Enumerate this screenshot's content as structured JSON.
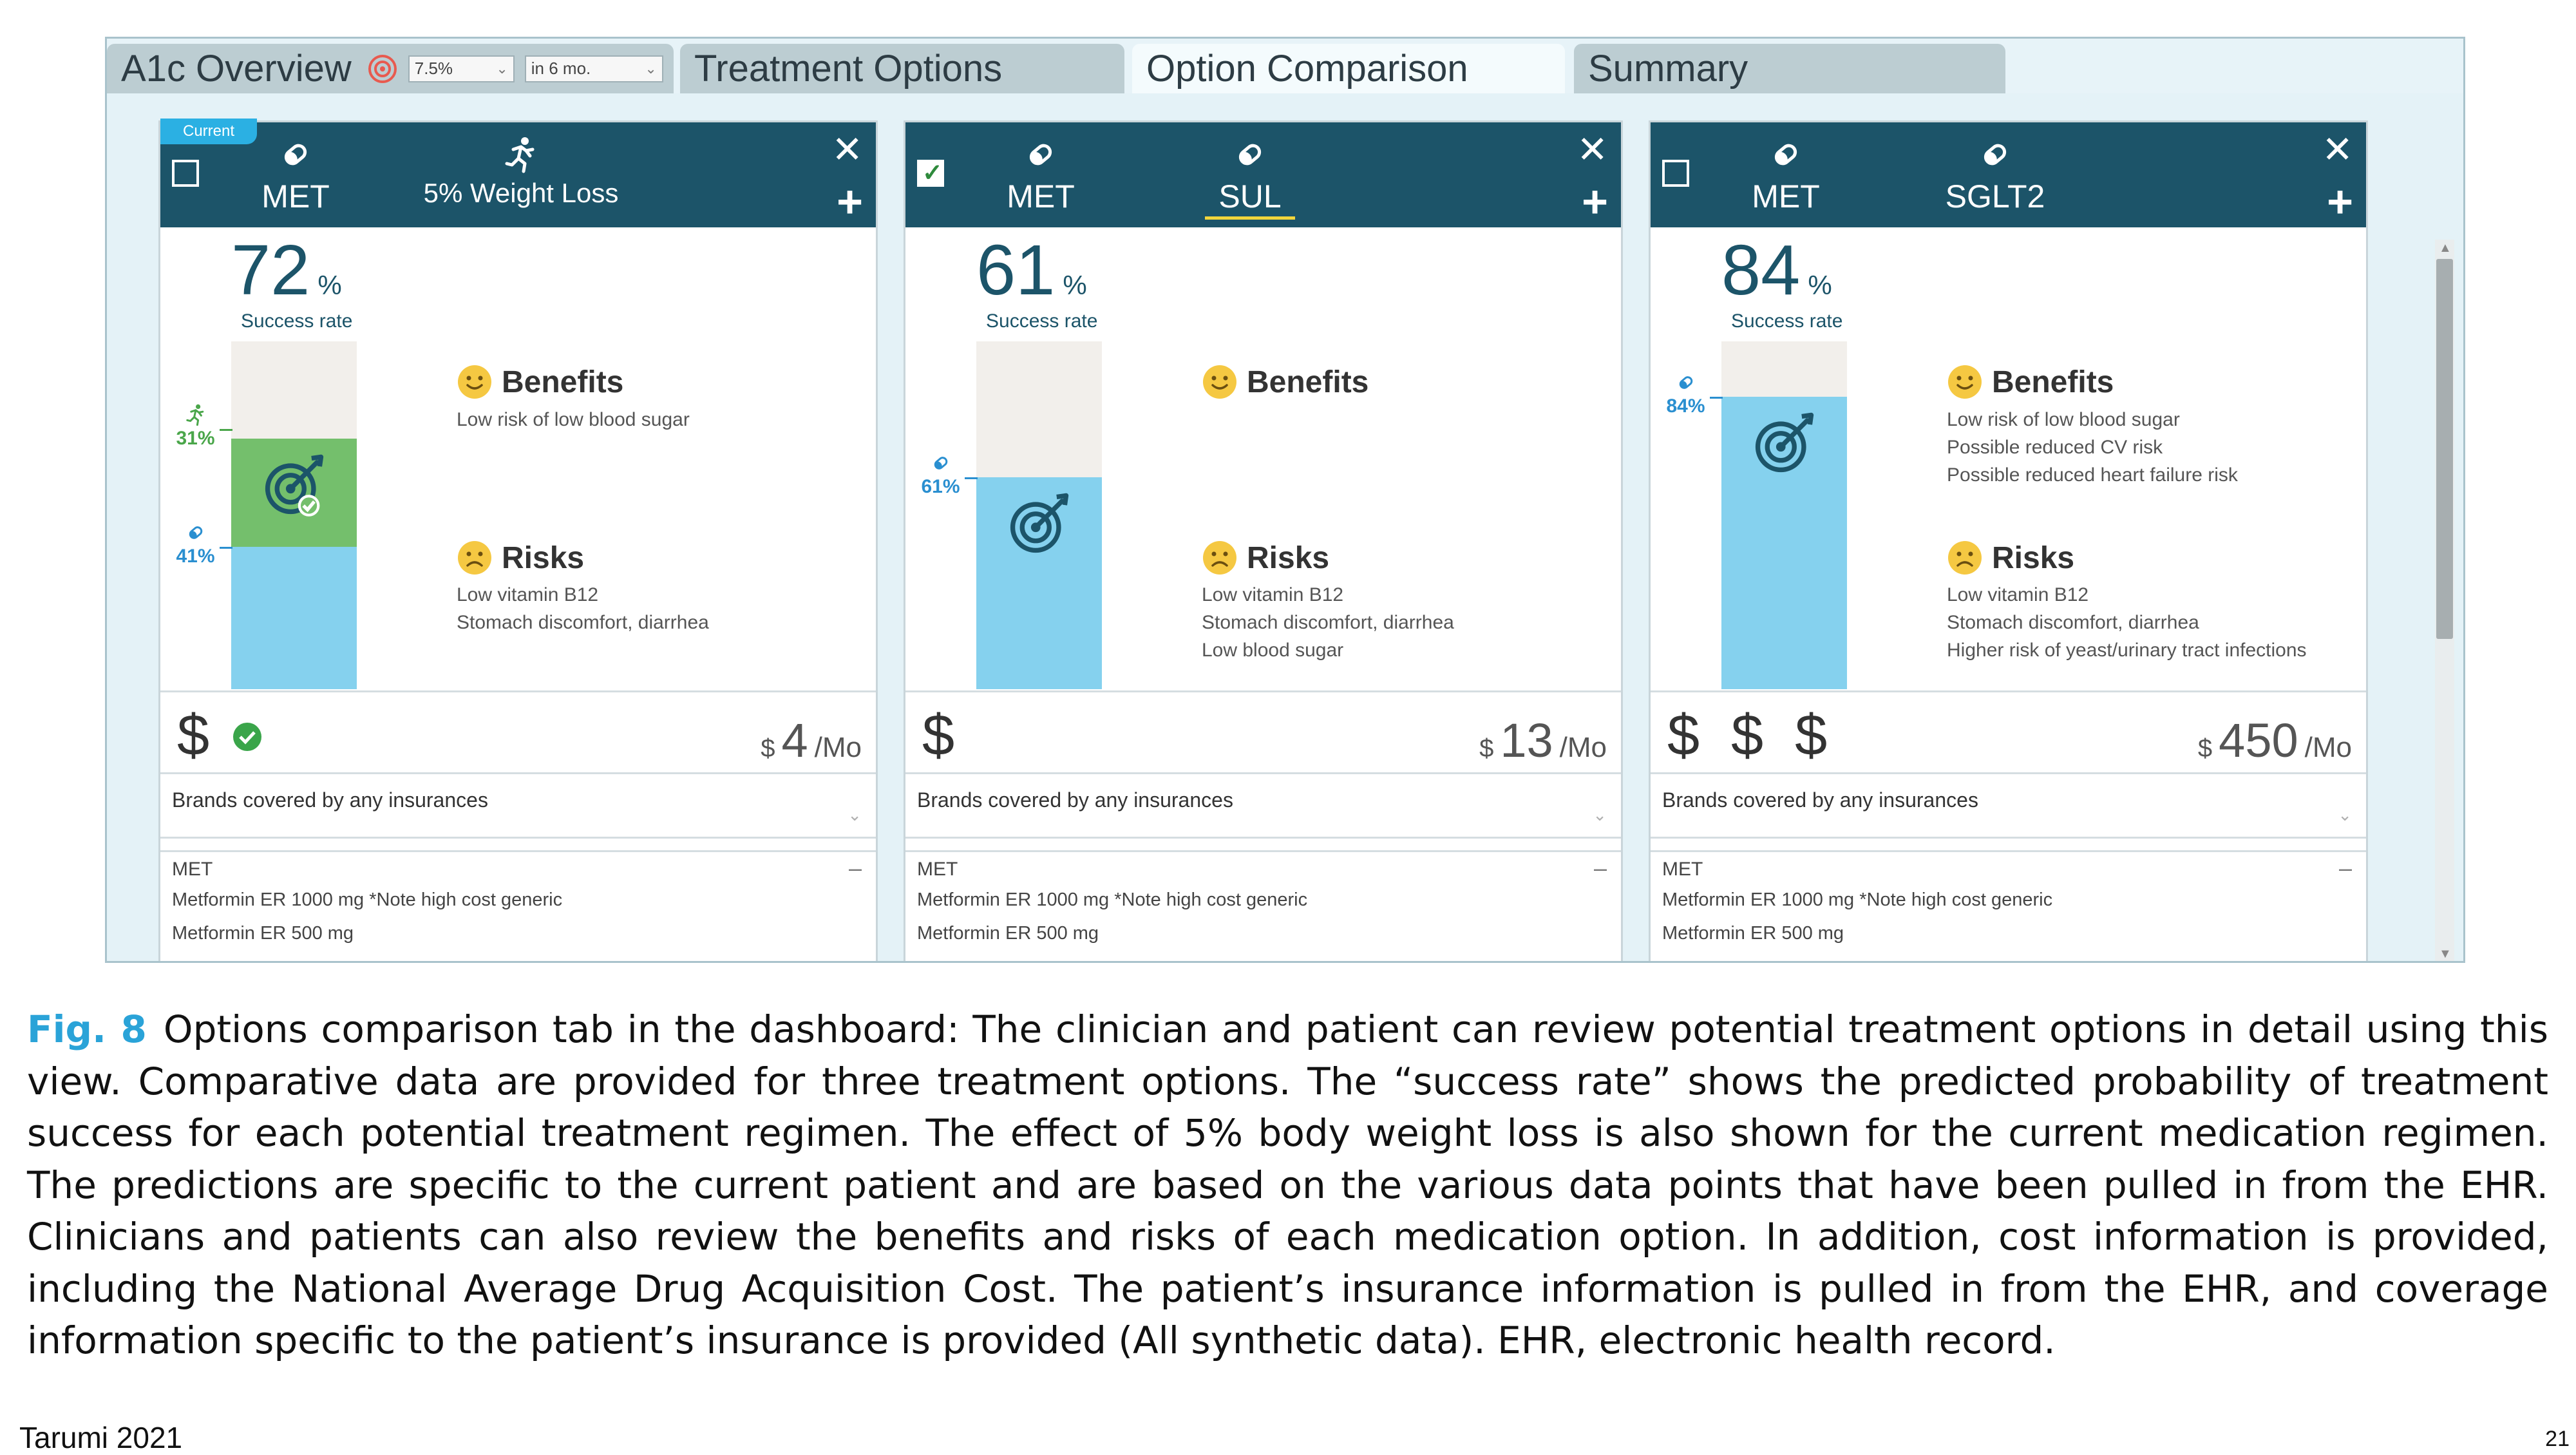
{
  "tabs": {
    "a1c_overview": {
      "label": "A1c Overview",
      "target_value": "7.5%",
      "time_value": "in 6 mo."
    },
    "treatment_options": "Treatment Options",
    "option_comparison": "Option Comparison",
    "summary": "Summary",
    "active": "Option Comparison"
  },
  "cards": [
    {
      "current_tag": "Current",
      "checked": false,
      "options": [
        {
          "icon": "pill-icon",
          "label": "MET"
        },
        {
          "icon": "runner-icon",
          "label": "5% Weight Loss"
        }
      ],
      "success_pct": "72",
      "pct_sign": "%",
      "success_label": "Success rate",
      "bar": {
        "blue_pct": 41,
        "green_pct": 31
      },
      "annotations": [
        {
          "icon": "runner-icon",
          "value": "31%"
        },
        {
          "icon": "pill-icon",
          "value": "41%"
        }
      ],
      "benefits_title": "Benefits",
      "benefits": [
        "Low risk of low blood sugar"
      ],
      "risks_title": "Risks",
      "risks": [
        "Low vitamin B12",
        "Stomach discomfort, diarrhea"
      ],
      "cost_symbol": "$",
      "covered": true,
      "price_currency": "$",
      "price_value": "4",
      "price_unit": "/Mo",
      "brands_label": "Brands covered by any insurances",
      "med_header": "MET",
      "med_dash": "–",
      "meds": [
        "Metformin ER 1000 mg *Note high cost generic",
        "Metformin ER 500 mg"
      ]
    },
    {
      "current_tag": "",
      "checked": true,
      "options": [
        {
          "icon": "pill-icon",
          "label": "MET"
        },
        {
          "icon": "pill-icon",
          "label": "SUL"
        }
      ],
      "success_pct": "61",
      "pct_sign": "%",
      "success_label": "Success rate",
      "bar": {
        "blue_pct": 61,
        "green_pct": 0
      },
      "annotations": [
        {
          "icon": "pill-icon",
          "value": "61%"
        }
      ],
      "benefits_title": "Benefits",
      "benefits": [],
      "risks_title": "Risks",
      "risks": [
        "Low vitamin B12",
        "Stomach discomfort, diarrhea",
        "Low blood sugar"
      ],
      "cost_symbol": "$",
      "covered": false,
      "price_currency": "$",
      "price_value": "13",
      "price_unit": "/Mo",
      "brands_label": "Brands covered by any insurances",
      "med_header": "MET",
      "med_dash": "–",
      "meds": [
        "Metformin ER 1000 mg *Note high cost generic",
        "Metformin ER 500 mg"
      ]
    },
    {
      "current_tag": "",
      "checked": false,
      "options": [
        {
          "icon": "pill-icon",
          "label": "MET"
        },
        {
          "icon": "pill-icon",
          "label": "SGLT2"
        }
      ],
      "success_pct": "84",
      "pct_sign": "%",
      "success_label": "Success rate",
      "bar": {
        "blue_pct": 84,
        "green_pct": 0
      },
      "annotations": [
        {
          "icon": "pill-icon",
          "value": "84%"
        }
      ],
      "benefits_title": "Benefits",
      "benefits": [
        "Low risk of low blood sugar",
        "Possible reduced CV risk",
        "Possible reduced heart failure risk"
      ],
      "risks_title": "Risks",
      "risks": [
        "Low vitamin B12",
        "Stomach discomfort, diarrhea",
        "Higher risk of yeast/urinary tract infections"
      ],
      "cost_symbol": "$ $ $",
      "covered": false,
      "price_currency": "$",
      "price_value": "450",
      "price_unit": "/Mo",
      "brands_label": "Brands covered by any insurances",
      "med_header": "MET",
      "med_dash": "–",
      "meds": [
        "Metformin ER 1000 mg *Note high cost generic",
        "Metformin ER 500 mg"
      ]
    }
  ],
  "colors": {
    "header": "#1c5469",
    "bar_blue": "#85d1ee",
    "bar_green": "#74bf6c",
    "bar_bg": "#f2efeb",
    "current_tag": "#2bb0e3",
    "fig_label": "#2aa3d8"
  },
  "caption": {
    "fig_label": "Fig. 8",
    "text": "Options comparison tab in the dashboard: The clinician and patient can review potential treatment options in detail using this view. Comparative data are provided for three treatment options. The “success rate” shows the predicted probability of treatment success for each potential treatment regimen. The effect of 5% body weight loss is also shown for the current medication regimen. The predictions are specific to the current patient and are based on the various data points that have been pulled in from the EHR. Clinicians and patients can also review the benefits and risks of each medication option. In addition, cost information is provided, including the National Average Drug Acquisition Cost. The patient’s insurance information is pulled in from the EHR, and coverage information specific to the patient’s insurance is provided (All synthetic data). EHR, electronic health record."
  },
  "footer": {
    "left": "Tarumi 2021",
    "right": "21"
  }
}
